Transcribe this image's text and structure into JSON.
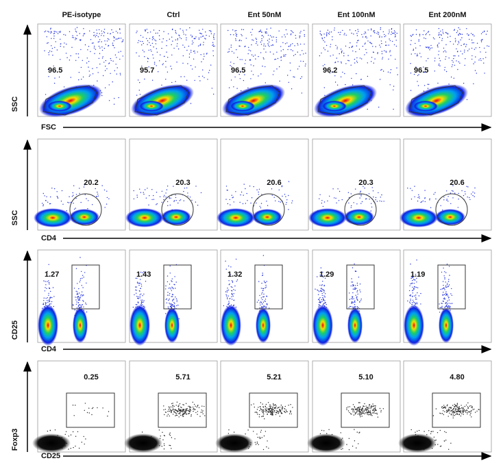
{
  "columns": [
    "PE-isotype",
    "Ctrl",
    "Ent 50nM",
    "Ent 100nM",
    "Ent 200nM"
  ],
  "rows": [
    {
      "y_label": "SSC",
      "x_label": "FSC",
      "gates": [
        "96.5",
        "95.7",
        "96.5",
        "96.2",
        "96.5"
      ]
    },
    {
      "y_label": "SSC",
      "x_label": "CD4",
      "gates": [
        "20.2",
        "20.3",
        "20.6",
        "20.3",
        "20.6"
      ]
    },
    {
      "y_label": "CD25",
      "x_label": "CD4",
      "gates": [
        "1.27",
        "1.43",
        "1.32",
        "1.29",
        "1.19"
      ]
    },
    {
      "y_label": "Foxp3",
      "x_label": "CD25",
      "gates": [
        "0.25",
        "5.71",
        "5.21",
        "5.10",
        "4.80"
      ]
    }
  ]
}
